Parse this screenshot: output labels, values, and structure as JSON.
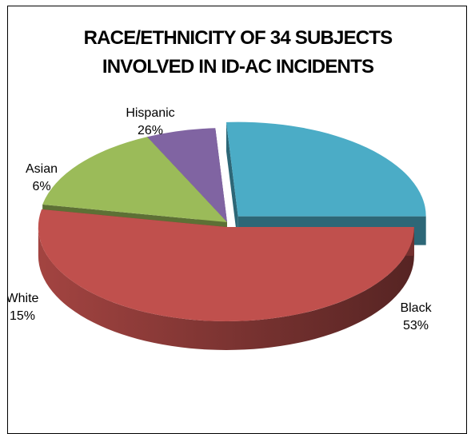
{
  "chart_data": {
    "type": "pie",
    "title": [
      "RACE/ETHNICITY OF 34  SUBJECTS",
      "INVOLVED IN ID-AC INCIDENTS"
    ],
    "slices": [
      {
        "category": "Black",
        "value": 53,
        "value_label": "53%",
        "color": "#C0504D"
      },
      {
        "category": "White",
        "value": 15,
        "value_label": "15%",
        "color": "#9BBB59"
      },
      {
        "category": "Asian",
        "value": 6,
        "value_label": "6%",
        "color": "#8064A2"
      },
      {
        "category": "Hispanic",
        "value": 26,
        "value_label": "26%",
        "color": "#4BACC6"
      }
    ],
    "style": "3d-exploded"
  }
}
